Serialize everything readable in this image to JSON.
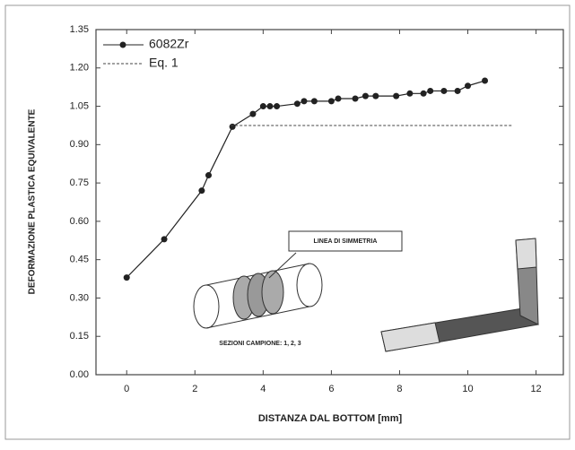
{
  "chart_data": {
    "type": "line",
    "ylabel": "DEFORMAZIONE PLASTICA EQUIVALENTE",
    "xlabel": "DISTANZA DAL BOTTOM [mm]",
    "xlim": [
      -0.9,
      12.8
    ],
    "ylim": [
      0,
      1.35
    ],
    "xticks": [
      0,
      2,
      4,
      6,
      8,
      10,
      12
    ],
    "yticks": [
      {
        "value": 0,
        "label": "0.00"
      },
      {
        "value": 0.15,
        "label": "0.15"
      },
      {
        "value": 0.3,
        "label": "0.30"
      },
      {
        "value": 0.45,
        "label": "0.45"
      },
      {
        "value": 0.6,
        "label": "0.60"
      },
      {
        "value": 0.75,
        "label": "0.75"
      },
      {
        "value": 0.9,
        "label": "0.90"
      },
      {
        "value": 1.05,
        "label": "1.05"
      },
      {
        "value": 1.2,
        "label": "1.20"
      },
      {
        "value": 1.35,
        "label": "1.35"
      }
    ],
    "legend": "upper left",
    "series": [
      {
        "name": "6082Zr",
        "color": "#222222",
        "style": "solid-markers",
        "x": [
          0,
          1.1,
          2.2,
          2.4,
          3.1,
          3.7,
          4.0,
          4.2,
          4.4,
          5.0,
          5.2,
          5.5,
          6.0,
          6.2,
          6.7,
          7.0,
          7.3,
          7.9,
          8.3,
          8.7,
          8.9,
          9.3,
          9.7,
          10.0,
          10.5
        ],
        "values": [
          0.38,
          0.53,
          0.72,
          0.78,
          0.97,
          1.02,
          1.05,
          1.05,
          1.05,
          1.06,
          1.07,
          1.07,
          1.07,
          1.08,
          1.08,
          1.09,
          1.09,
          1.09,
          1.1,
          1.1,
          1.11,
          1.11,
          1.11,
          1.13,
          1.15
        ]
      },
      {
        "name": "Eq. 1",
        "color": "#444444",
        "style": "dashed",
        "x": [
          3.05,
          11.3
        ],
        "values": [
          0.975,
          0.975
        ]
      }
    ],
    "annotations": [
      "LINEA DI SIMMETRIA",
      "SEZIONI CAMPIONE: 1, 2, 3"
    ]
  }
}
